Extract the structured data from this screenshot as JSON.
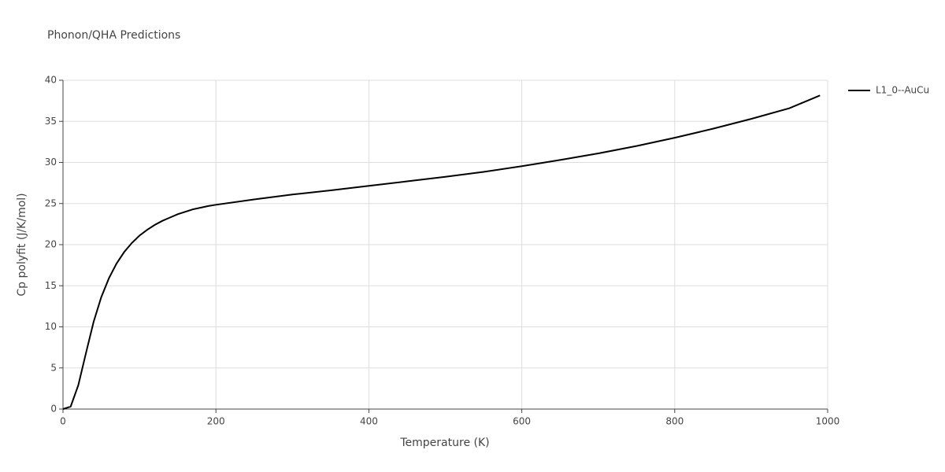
{
  "chart_data": {
    "type": "line",
    "title": "Phonon/QHA Predictions",
    "x_label": "Temperature (K)",
    "y_label": "Cp polyfit (J/K/mol)",
    "x": [
      0,
      10,
      20,
      30,
      40,
      50,
      60,
      70,
      80,
      90,
      100,
      110,
      120,
      130,
      140,
      150,
      160,
      170,
      180,
      190,
      200,
      250,
      300,
      350,
      400,
      450,
      500,
      550,
      600,
      650,
      700,
      750,
      800,
      850,
      900,
      950,
      990
    ],
    "series": [
      {
        "name": "L1_0--AuCu",
        "color": "#000000",
        "values": [
          0,
          0.3,
          2.9,
          6.8,
          10.6,
          13.6,
          15.9,
          17.7,
          19.1,
          20.2,
          21.1,
          21.8,
          22.4,
          22.9,
          23.3,
          23.7,
          24.0,
          24.3,
          24.5,
          24.7,
          24.85,
          25.5,
          26.1,
          26.6,
          27.15,
          27.7,
          28.25,
          28.85,
          29.55,
          30.3,
          31.1,
          32.0,
          33.0,
          34.1,
          35.3,
          36.6,
          38.15
        ]
      }
    ],
    "xlim": [
      0,
      1000
    ],
    "xticks": [
      0,
      200,
      400,
      600,
      800,
      1000
    ],
    "ylim": [
      0,
      40
    ],
    "yticks": [
      0,
      5,
      10,
      15,
      20,
      25,
      30,
      35,
      40
    ],
    "grid": true,
    "legend": "right"
  }
}
